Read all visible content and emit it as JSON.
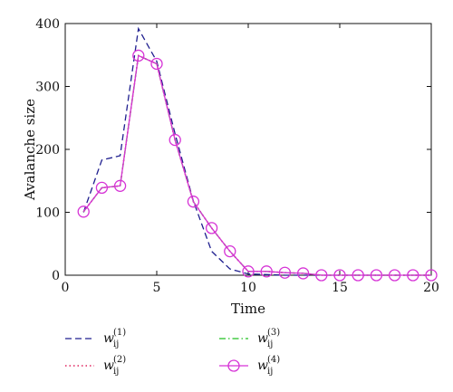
{
  "chart_data": {
    "type": "line",
    "title": "",
    "xlabel": "Time",
    "ylabel": "Avalanche size",
    "xlim": [
      0,
      20
    ],
    "ylim": [
      0,
      400
    ],
    "xticks": [
      0,
      5,
      10,
      15,
      20
    ],
    "yticks": [
      0,
      100,
      200,
      300,
      400
    ],
    "grid": false,
    "legend_position": "bottom",
    "series": [
      {
        "name": "w_ij^(1)",
        "legend_base": "w",
        "legend_sub": "ij",
        "legend_sup": "(1)",
        "color": "#1f1f8f",
        "style": "dashed",
        "marker": "none",
        "x": [
          1,
          2,
          3,
          4,
          5,
          6,
          7,
          8,
          9,
          10,
          11,
          12,
          13,
          14,
          15,
          16,
          17,
          18,
          19,
          20
        ],
        "y": [
          100,
          183,
          190,
          392,
          340,
          225,
          118,
          38,
          10,
          2,
          1,
          0,
          0,
          0,
          0,
          0,
          0,
          0,
          0,
          0
        ]
      },
      {
        "name": "w_ij^(2)",
        "legend_base": "w",
        "legend_sub": "ij",
        "legend_sup": "(2)",
        "color": "#e0245e",
        "style": "dotted",
        "marker": "none",
        "x": [
          1,
          2,
          3,
          4,
          5,
          6,
          7,
          8,
          9,
          10,
          11,
          12,
          13,
          14,
          15,
          16,
          17,
          18,
          19,
          20
        ],
        "y": [
          101,
          139,
          142,
          349,
          336,
          215,
          117,
          75,
          38,
          6,
          6,
          4,
          3,
          0,
          0,
          0,
          0,
          0,
          0,
          0
        ]
      },
      {
        "name": "w_ij^(3)",
        "legend_base": "w",
        "legend_sub": "ij",
        "legend_sup": "(3)",
        "color": "#22c022",
        "style": "dashdot",
        "marker": "none",
        "x": [
          1,
          2,
          3,
          4,
          5,
          6,
          7,
          8,
          9,
          10,
          11,
          12,
          13,
          14,
          15,
          16,
          17,
          18,
          19,
          20
        ],
        "y": [
          101,
          139,
          142,
          349,
          336,
          215,
          117,
          75,
          38,
          6,
          6,
          4,
          3,
          0,
          0,
          0,
          0,
          0,
          0,
          0
        ]
      },
      {
        "name": "w_ij^(4)",
        "legend_base": "w",
        "legend_sub": "ij",
        "legend_sup": "(4)",
        "color": "#d633d6",
        "style": "solid",
        "marker": "circle",
        "x": [
          1,
          2,
          3,
          4,
          5,
          6,
          7,
          8,
          9,
          10,
          11,
          12,
          13,
          14,
          15,
          16,
          17,
          18,
          19,
          20
        ],
        "y": [
          101,
          139,
          142,
          349,
          336,
          215,
          117,
          75,
          38,
          6,
          6,
          4,
          3,
          0,
          0,
          0,
          0,
          0,
          0,
          0
        ]
      }
    ]
  }
}
